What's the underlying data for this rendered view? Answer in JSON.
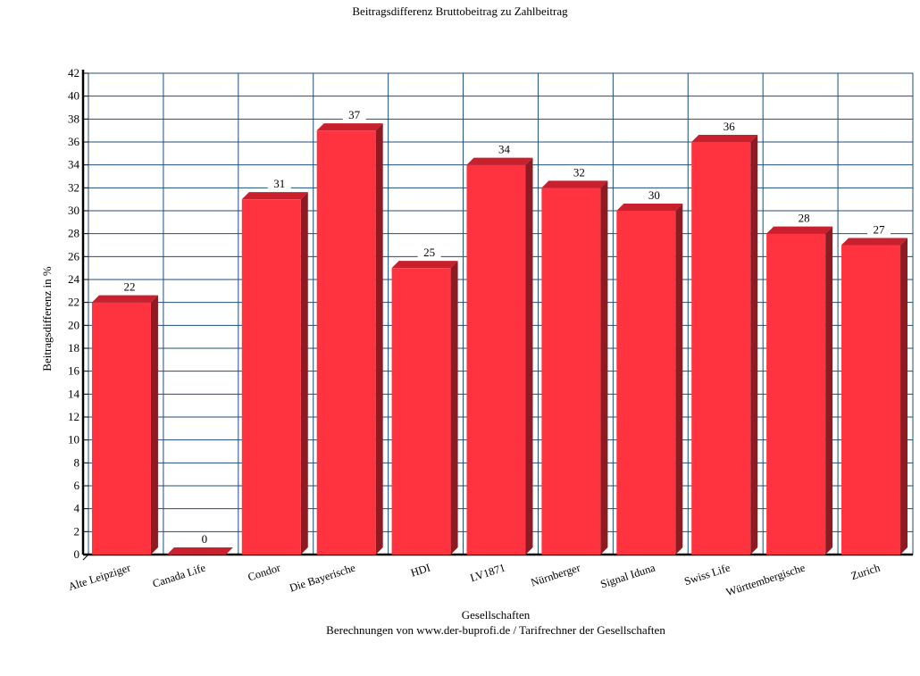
{
  "chart_data": {
    "type": "bar",
    "title": "Beitragsdifferenz Bruttobeitrag zu Zahlbeitrag",
    "xlabel": "Gesellschaften",
    "ylabel": "Beitragsdifferenz in %",
    "footnote": "Berechnungen von www.der-buprofi.de / Tarifrechner der Gesellschaften",
    "categories": [
      "Alte Leipziger",
      "Canada Life",
      "Condor",
      "Die Bayerische",
      "HDI",
      "LV1871",
      "Nürnberger",
      "Signal Iduna",
      "Swiss Life",
      "Württembergische",
      "Zurich"
    ],
    "values": [
      22,
      0,
      31,
      37,
      25,
      34,
      32,
      30,
      36,
      28,
      27
    ],
    "ylim": [
      0,
      42
    ],
    "ytick_step": 2,
    "grid": true,
    "bar_color": "#ff3340",
    "bar_side_color": "#8e1a22",
    "bar_top_color": "#c8202c",
    "grid_color": "#1f4e79"
  }
}
